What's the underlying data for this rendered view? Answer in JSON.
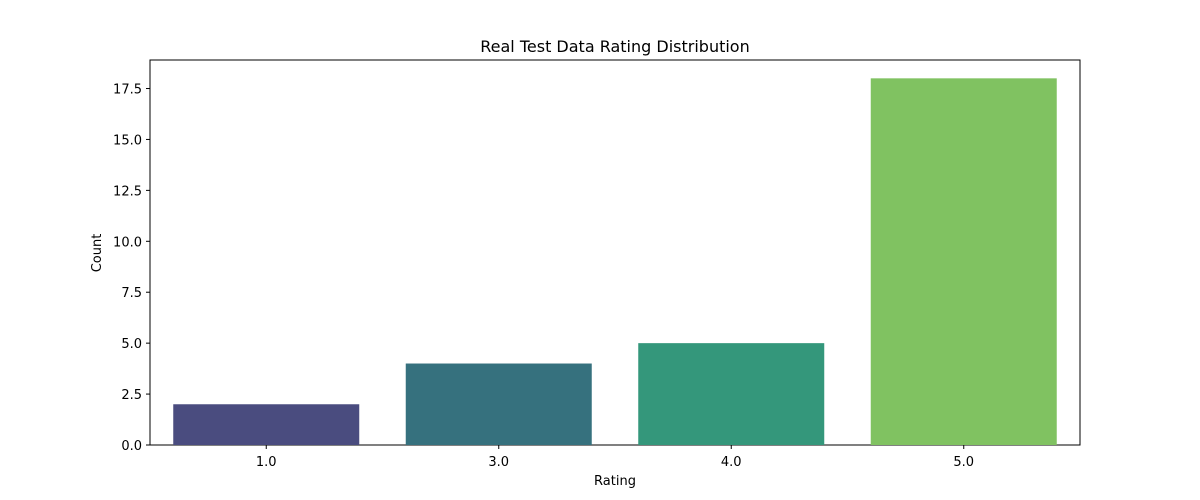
{
  "chart_data": {
    "type": "bar",
    "title": "Real Test Data Rating Distribution",
    "xlabel": "Rating",
    "ylabel": "Count",
    "categories": [
      "1.0",
      "3.0",
      "4.0",
      "5.0"
    ],
    "values": [
      2,
      4,
      5,
      18
    ],
    "ylim": [
      0,
      18.9
    ],
    "yticks": [
      0.0,
      2.5,
      5.0,
      7.5,
      10.0,
      12.5,
      15.0,
      17.5
    ],
    "ytick_labels": [
      "0.0",
      "2.5",
      "5.0",
      "7.5",
      "10.0",
      "12.5",
      "15.0",
      "17.5"
    ],
    "colors": [
      "#4a4c7f",
      "#36717e",
      "#34977b",
      "#80c261"
    ],
    "grid": false,
    "legend": "none"
  }
}
